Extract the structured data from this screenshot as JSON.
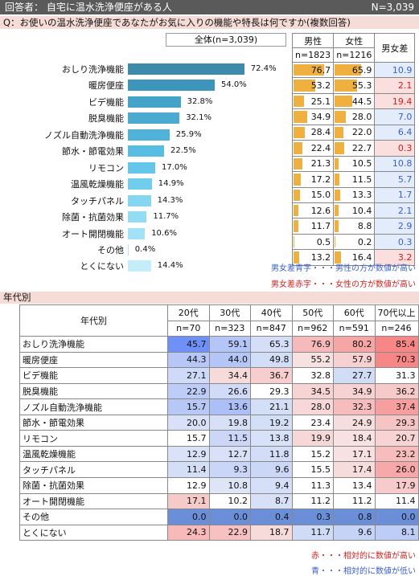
{
  "header": {
    "respondent": "回答者： 自宅に温水洗浄便座がある人",
    "n_total": "N=3,039"
  },
  "question": "Q：お使いの温水洗浄便座であなたがお気に入りの機能や特長は何ですか(複数回答)",
  "chart_data": {
    "type": "bar",
    "total_label": "全体(n=3,039)",
    "categories": [
      "おしり洗浄機能",
      "暖房便座",
      "ビデ機能",
      "脱臭機能",
      "ノズル自動洗浄機能",
      "節水・節電効果",
      "リモコン",
      "温風乾燥機能",
      "タッチパネル",
      "除菌・抗菌効果",
      "オート開閉機能",
      "その他",
      "とくにない"
    ],
    "values": [
      72.4,
      54.0,
      32.8,
      32.1,
      25.9,
      22.5,
      17.0,
      14.9,
      14.3,
      11.7,
      10.6,
      0.4,
      14.4
    ],
    "value_labels": [
      "72.4%",
      "54.0%",
      "32.8%",
      "32.1%",
      "25.9%",
      "22.5%",
      "17.0%",
      "14.9%",
      "14.3%",
      "11.7%",
      "10.6%",
      "0.4%",
      "14.4%"
    ],
    "xlim": [
      0,
      100
    ],
    "gender": {
      "headers": [
        "男性",
        "女性",
        "男女差"
      ],
      "ns": [
        "n=1823",
        "n=1216"
      ],
      "male": [
        "76.7",
        "53.2",
        "25.1",
        "34.9",
        "28.4",
        "22.4",
        "21.3",
        "17.2",
        "15.0",
        "12.6",
        "11.7",
        "0.5",
        "13.2"
      ],
      "female": [
        "65.9",
        "55.3",
        "44.5",
        "28.0",
        "22.0",
        "22.7",
        "10.5",
        "11.5",
        "13.3",
        "10.4",
        "8.8",
        "0.2",
        "16.4"
      ],
      "diff": [
        "10.9",
        "2.1",
        "19.4",
        "7.0",
        "6.4",
        "0.3",
        "10.8",
        "5.7",
        "1.7",
        "2.1",
        "2.9",
        "0.3",
        "3.2"
      ],
      "diff_color": [
        "blue",
        "red",
        "red",
        "blue",
        "blue",
        "red",
        "blue",
        "blue",
        "blue",
        "blue",
        "blue",
        "blue",
        "red"
      ]
    },
    "notes": {
      "blue": "男女差青字・・・男性の方が数値が高い",
      "red": "男女差赤字・・・女性の方が数値が高い"
    },
    "age": {
      "title": "年代別",
      "row_header": "年代別",
      "headers": [
        "20代",
        "30代",
        "40代",
        "50代",
        "60代",
        "70代以上"
      ],
      "ns": [
        "n=70",
        "n=323",
        "n=847",
        "n=962",
        "n=591",
        "n=246"
      ],
      "rows": [
        [
          "45.7",
          "59.1",
          "65.3",
          "76.9",
          "80.2",
          "85.4"
        ],
        [
          "44.3",
          "44.0",
          "49.8",
          "55.2",
          "57.9",
          "70.3"
        ],
        [
          "27.1",
          "34.4",
          "36.7",
          "32.8",
          "27.7",
          "31.3"
        ],
        [
          "22.9",
          "26.6",
          "29.3",
          "34.5",
          "34.9",
          "36.2"
        ],
        [
          "15.7",
          "13.6",
          "21.1",
          "28.0",
          "32.3",
          "37.4"
        ],
        [
          "20.0",
          "19.8",
          "19.2",
          "23.4",
          "24.9",
          "29.3"
        ],
        [
          "15.7",
          "11.5",
          "13.8",
          "19.9",
          "18.4",
          "20.7"
        ],
        [
          "12.9",
          "12.7",
          "11.8",
          "15.2",
          "17.1",
          "23.2"
        ],
        [
          "11.4",
          "9.3",
          "9.6",
          "15.5",
          "17.4",
          "26.0"
        ],
        [
          "12.9",
          "10.8",
          "9.4",
          "11.3",
          "13.4",
          "17.9"
        ],
        [
          "17.1",
          "10.2",
          "8.7",
          "11.2",
          "11.2",
          "11.4"
        ],
        [
          "0.0",
          "0.0",
          "0.4",
          "0.3",
          "0.8",
          "0.0"
        ],
        [
          "24.3",
          "22.9",
          "18.7",
          "11.7",
          "9.6",
          "8.1"
        ]
      ],
      "notes": {
        "red": "赤・・・相対的に数値が高い",
        "blue": "青・・・相対的に数値が低い"
      }
    }
  }
}
